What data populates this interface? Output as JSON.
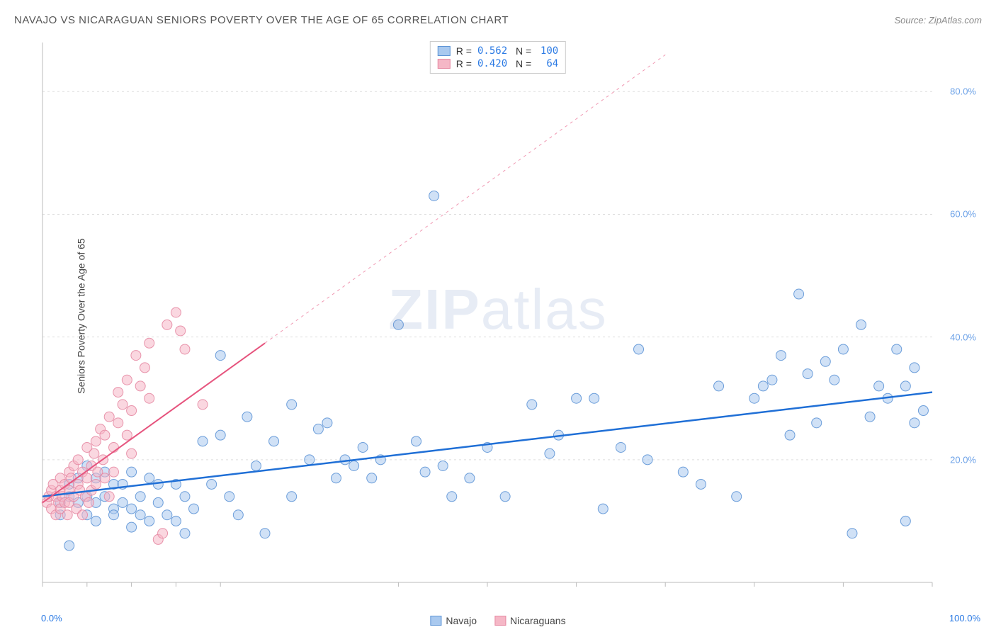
{
  "header": {
    "title": "NAVAJO VS NICARAGUAN SENIORS POVERTY OVER THE AGE OF 65 CORRELATION CHART",
    "source_prefix": "Source: ",
    "source": "ZipAtlas.com"
  },
  "watermark": {
    "zip": "ZIP",
    "atlas": "atlas"
  },
  "chart": {
    "type": "scatter",
    "y_axis_label": "Seniors Poverty Over the Age of 65",
    "x_min": 0,
    "x_max": 100,
    "y_min": 0,
    "y_max": 88,
    "x_corner_min": "0.0%",
    "x_corner_max": "100.0%",
    "y_ticks": [
      {
        "v": 20,
        "label": "20.0%"
      },
      {
        "v": 40,
        "label": "40.0%"
      },
      {
        "v": 60,
        "label": "60.0%"
      },
      {
        "v": 80,
        "label": "80.0%"
      }
    ],
    "x_tick_positions": [
      0,
      5,
      10,
      15,
      20,
      40,
      50,
      60,
      70,
      80,
      90,
      100
    ],
    "plot_bg": "#ffffff",
    "grid_color": "#dddddd",
    "axis_color": "#bbbbbb",
    "series": [
      {
        "name": "Navajo",
        "fill": "#a9c9ef",
        "fill_opacity": 0.55,
        "stroke": "#5e95d6",
        "stroke_opacity": 0.9,
        "trend_stroke": "#1f6fd6",
        "trend_width": 2.5,
        "trend": {
          "x1": 0,
          "y1": 14,
          "x2": 100,
          "y2": 31
        },
        "marker_r": 7,
        "R": "0.562",
        "N": "100",
        "points": [
          [
            2,
            13
          ],
          [
            2,
            11
          ],
          [
            3,
            14
          ],
          [
            3,
            16
          ],
          [
            3,
            6
          ],
          [
            4,
            13
          ],
          [
            4,
            17
          ],
          [
            5,
            14
          ],
          [
            5,
            11
          ],
          [
            5,
            19
          ],
          [
            6,
            13
          ],
          [
            6,
            17
          ],
          [
            6,
            10
          ],
          [
            7,
            14
          ],
          [
            7,
            18
          ],
          [
            8,
            12
          ],
          [
            8,
            16
          ],
          [
            8,
            11
          ],
          [
            9,
            16
          ],
          [
            9,
            13
          ],
          [
            10,
            12
          ],
          [
            10,
            18
          ],
          [
            10,
            9
          ],
          [
            11,
            14
          ],
          [
            11,
            11
          ],
          [
            12,
            17
          ],
          [
            12,
            10
          ],
          [
            13,
            13
          ],
          [
            13,
            16
          ],
          [
            14,
            11
          ],
          [
            15,
            16
          ],
          [
            15,
            10
          ],
          [
            16,
            14
          ],
          [
            16,
            8
          ],
          [
            17,
            12
          ],
          [
            18,
            23
          ],
          [
            19,
            16
          ],
          [
            20,
            37
          ],
          [
            20,
            24
          ],
          [
            21,
            14
          ],
          [
            22,
            11
          ],
          [
            23,
            27
          ],
          [
            24,
            19
          ],
          [
            25,
            8
          ],
          [
            26,
            23
          ],
          [
            28,
            14
          ],
          [
            28,
            29
          ],
          [
            30,
            20
          ],
          [
            31,
            25
          ],
          [
            32,
            26
          ],
          [
            33,
            17
          ],
          [
            34,
            20
          ],
          [
            35,
            19
          ],
          [
            36,
            22
          ],
          [
            37,
            17
          ],
          [
            38,
            20
          ],
          [
            40,
            42
          ],
          [
            42,
            23
          ],
          [
            43,
            18
          ],
          [
            44,
            63
          ],
          [
            45,
            19
          ],
          [
            46,
            14
          ],
          [
            48,
            17
          ],
          [
            50,
            22
          ],
          [
            52,
            14
          ],
          [
            55,
            29
          ],
          [
            57,
            21
          ],
          [
            58,
            24
          ],
          [
            60,
            30
          ],
          [
            62,
            30
          ],
          [
            63,
            12
          ],
          [
            65,
            22
          ],
          [
            67,
            38
          ],
          [
            68,
            20
          ],
          [
            72,
            18
          ],
          [
            74,
            16
          ],
          [
            76,
            32
          ],
          [
            78,
            14
          ],
          [
            80,
            30
          ],
          [
            81,
            32
          ],
          [
            82,
            33
          ],
          [
            83,
            37
          ],
          [
            84,
            24
          ],
          [
            85,
            47
          ],
          [
            86,
            34
          ],
          [
            87,
            26
          ],
          [
            88,
            36
          ],
          [
            89,
            33
          ],
          [
            90,
            38
          ],
          [
            91,
            8
          ],
          [
            92,
            42
          ],
          [
            93,
            27
          ],
          [
            94,
            32
          ],
          [
            95,
            30
          ],
          [
            96,
            38
          ],
          [
            97,
            32
          ],
          [
            97,
            10
          ],
          [
            98,
            26
          ],
          [
            98,
            35
          ],
          [
            99,
            28
          ]
        ]
      },
      {
        "name": "Nicaraguans",
        "fill": "#f5b7c6",
        "fill_opacity": 0.55,
        "stroke": "#e68aa3",
        "stroke_opacity": 0.9,
        "trend_stroke": "#e6547e",
        "trend_width": 2,
        "trend_solid": {
          "x1": 0,
          "y1": 13,
          "x2": 25,
          "y2": 39
        },
        "trend_dash": {
          "x1": 25,
          "y1": 39,
          "x2": 70,
          "y2": 86
        },
        "marker_r": 7,
        "R": "0.420",
        "N": "64",
        "points": [
          [
            0.5,
            13
          ],
          [
            0.7,
            14
          ],
          [
            1,
            12
          ],
          [
            1,
            15
          ],
          [
            1.2,
            16
          ],
          [
            1.5,
            11
          ],
          [
            1.5,
            14
          ],
          [
            1.8,
            13
          ],
          [
            2,
            15
          ],
          [
            2,
            17
          ],
          [
            2,
            12
          ],
          [
            2.2,
            14
          ],
          [
            2.5,
            16
          ],
          [
            2.5,
            13
          ],
          [
            2.8,
            11
          ],
          [
            3,
            15
          ],
          [
            3,
            18
          ],
          [
            3,
            13
          ],
          [
            3.2,
            17
          ],
          [
            3.5,
            14
          ],
          [
            3.5,
            19
          ],
          [
            3.8,
            12
          ],
          [
            4,
            16
          ],
          [
            4,
            20
          ],
          [
            4.2,
            15
          ],
          [
            4.5,
            11
          ],
          [
            4.5,
            18
          ],
          [
            4.8,
            14
          ],
          [
            5,
            22
          ],
          [
            5,
            17
          ],
          [
            5.2,
            13
          ],
          [
            5.5,
            19
          ],
          [
            5.5,
            15
          ],
          [
            5.8,
            21
          ],
          [
            6,
            16
          ],
          [
            6,
            23
          ],
          [
            6.2,
            18
          ],
          [
            6.5,
            25
          ],
          [
            6.8,
            20
          ],
          [
            7,
            17
          ],
          [
            7,
            24
          ],
          [
            7.5,
            14
          ],
          [
            7.5,
            27
          ],
          [
            8,
            22
          ],
          [
            8,
            18
          ],
          [
            8.5,
            31
          ],
          [
            8.5,
            26
          ],
          [
            9,
            29
          ],
          [
            9.5,
            24
          ],
          [
            9.5,
            33
          ],
          [
            10,
            21
          ],
          [
            10,
            28
          ],
          [
            10.5,
            37
          ],
          [
            11,
            32
          ],
          [
            11.5,
            35
          ],
          [
            12,
            30
          ],
          [
            12,
            39
          ],
          [
            13,
            7
          ],
          [
            13.5,
            8
          ],
          [
            14,
            42
          ],
          [
            15,
            44
          ],
          [
            15.5,
            41
          ],
          [
            16,
            38
          ],
          [
            18,
            29
          ]
        ]
      }
    ],
    "legend_bottom": [
      {
        "label": "Navajo",
        "fill": "#a9c9ef",
        "stroke": "#5e95d6"
      },
      {
        "label": "Nicaraguans",
        "fill": "#f5b7c6",
        "stroke": "#e68aa3"
      }
    ]
  }
}
